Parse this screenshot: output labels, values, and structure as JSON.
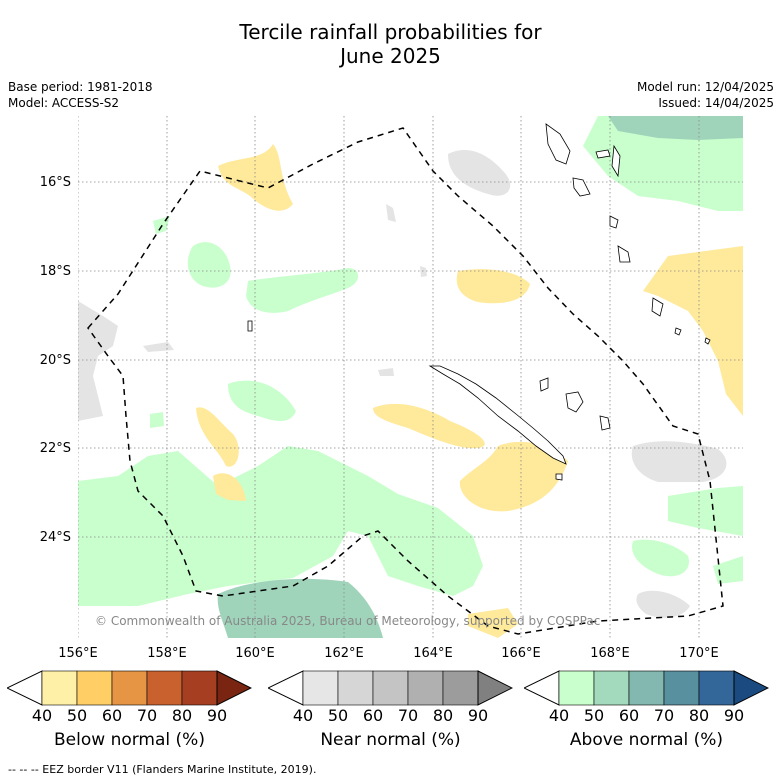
{
  "title": {
    "line1": "Tercile rainfall probabilities for",
    "line2": "June 2025"
  },
  "meta": {
    "base_period": "Base period: 1981-2018",
    "model": "Model: ACCESS-S2",
    "model_run": "Model run: 12/04/2025",
    "issued": "Issued: 14/04/2025"
  },
  "axes": {
    "lat_labels": [
      "16°S",
      "18°S",
      "20°S",
      "22°S",
      "24°S"
    ],
    "lon_labels": [
      "156°E",
      "158°E",
      "160°E",
      "162°E",
      "164°E",
      "166°E",
      "168°E",
      "170°E"
    ]
  },
  "copyright": "© Commonwealth of Australia 2025, Bureau of Meteorology, supported by COSPPac",
  "colorbars": [
    {
      "title": "Below normal (%)",
      "ticks": [
        "40",
        "50",
        "60",
        "70",
        "80",
        "90"
      ],
      "colors": [
        "#ffffff",
        "#fff0a8",
        "#ffcf66",
        "#e69545",
        "#c9612e",
        "#a63e22",
        "#7a2512"
      ]
    },
    {
      "title": "Near normal (%)",
      "ticks": [
        "40",
        "50",
        "60",
        "70",
        "80",
        "90"
      ],
      "colors": [
        "#ffffff",
        "#e6e6e6",
        "#d6d6d6",
        "#c4c4c4",
        "#b0b0b0",
        "#9c9c9c",
        "#808080"
      ]
    },
    {
      "title": "Above normal (%)",
      "ticks": [
        "40",
        "50",
        "60",
        "70",
        "80",
        "90"
      ],
      "colors": [
        "#ffffff",
        "#c8ffcc",
        "#a3d9bc",
        "#82b8b0",
        "#5990a0",
        "#336699",
        "#1a4a80"
      ]
    }
  ],
  "footnote": "--  --  -- EEZ border V11 (Flanders Marine Institute, 2019).",
  "map_colors": {
    "below": "#ffe99a",
    "near": "#e4e4e4",
    "above": "#c8ffcc",
    "above_dark": "#9fd4bb"
  }
}
